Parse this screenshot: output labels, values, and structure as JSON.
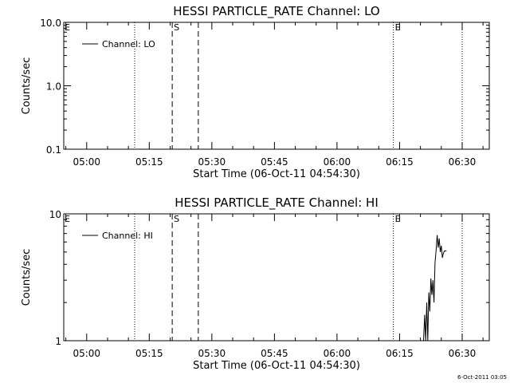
{
  "footer_stamp": "6-Oct-2011 03:05",
  "chart_data": [
    {
      "type": "line",
      "title": "HESSI PARTICLE_RATE Channel: LO",
      "xlabel": "Start Time (06-Oct-11 04:54:30)",
      "ylabel": "Counts/sec",
      "y_scale": "log",
      "ylim": [
        0.1,
        10.0
      ],
      "y_ticks": [
        "0.1",
        "1.0",
        "10.0"
      ],
      "xlim": [
        "04:54:30",
        "06:36:30"
      ],
      "x_ticks": [
        "05:00",
        "05:15",
        "05:30",
        "05:45",
        "06:00",
        "06:15",
        "06:30"
      ],
      "legend": {
        "placement": "top-left",
        "entries": [
          "Channel: LO"
        ]
      },
      "markers": [
        {
          "time": "05:11:30",
          "style": "dotted",
          "label": ""
        },
        {
          "time": "05:20:30",
          "style": "dashed",
          "label": "S"
        },
        {
          "time": "05:26:45",
          "style": "dashed",
          "label": ""
        },
        {
          "time": "06:13:30",
          "style": "dotted",
          "label": "E"
        },
        {
          "time": "06:30:00",
          "style": "dotted",
          "label": ""
        }
      ],
      "edge_labels": [
        "E"
      ],
      "series": [
        {
          "name": "Channel: LO",
          "points": []
        }
      ]
    },
    {
      "type": "line",
      "title": "HESSI PARTICLE_RATE Channel: HI",
      "xlabel": "Start Time (06-Oct-11 04:54:30)",
      "ylabel": "Counts/sec",
      "y_scale": "log",
      "ylim": [
        1,
        10
      ],
      "y_ticks": [
        "1",
        "10"
      ],
      "xlim": [
        "04:54:30",
        "06:36:30"
      ],
      "x_ticks": [
        "05:00",
        "05:15",
        "05:30",
        "05:45",
        "06:00",
        "06:15",
        "06:30"
      ],
      "legend": {
        "placement": "top-left",
        "entries": [
          "Channel: HI"
        ]
      },
      "markers": [
        {
          "time": "05:11:30",
          "style": "dotted",
          "label": ""
        },
        {
          "time": "05:20:30",
          "style": "dashed",
          "label": "S"
        },
        {
          "time": "05:26:45",
          "style": "dashed",
          "label": ""
        },
        {
          "time": "06:13:30",
          "style": "dotted",
          "label": "E"
        },
        {
          "time": "06:30:00",
          "style": "dotted",
          "label": ""
        }
      ],
      "edge_labels": [
        "E"
      ],
      "series": [
        {
          "name": "Channel: HI",
          "points": [
            [
              "06:20:45",
              1.0
            ],
            [
              "06:21:00",
              1.6
            ],
            [
              "06:21:15",
              1.0
            ],
            [
              "06:21:30",
              2.0
            ],
            [
              "06:21:45",
              1.0
            ],
            [
              "06:22:00",
              2.4
            ],
            [
              "06:22:15",
              1.7
            ],
            [
              "06:22:30",
              3.1
            ],
            [
              "06:22:45",
              2.3
            ],
            [
              "06:23:00",
              3.0
            ],
            [
              "06:23:15",
              2.0
            ],
            [
              "06:23:30",
              4.1
            ],
            [
              "06:23:45",
              5.2
            ],
            [
              "06:24:00",
              6.8
            ],
            [
              "06:24:15",
              5.4
            ],
            [
              "06:24:30",
              6.4
            ],
            [
              "06:24:45",
              5.0
            ],
            [
              "06:25:00",
              5.6
            ],
            [
              "06:25:15",
              4.5
            ],
            [
              "06:25:30",
              4.9
            ],
            [
              "06:25:45",
              5.1
            ],
            [
              "06:26:00",
              5.1
            ],
            [
              "06:26:15",
              5.1
            ]
          ]
        }
      ]
    }
  ]
}
